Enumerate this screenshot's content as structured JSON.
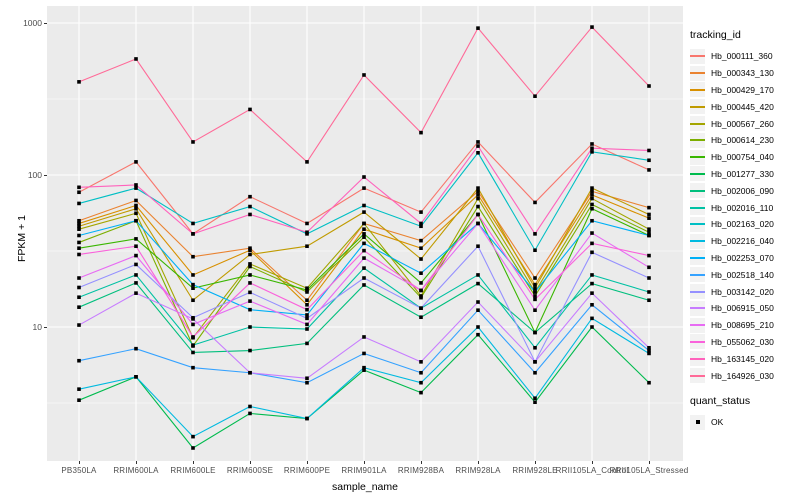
{
  "chart_data": {
    "type": "line",
    "title": "",
    "xlabel": "sample_name",
    "ylabel": "FPKM + 1",
    "yscale": "log10",
    "ylim": [
      1.3,
      1300
    ],
    "yticks": [
      10,
      100,
      1000
    ],
    "ytick_labels": [
      "10",
      "100",
      "1000"
    ],
    "yminor": [
      3.162,
      31.62,
      316.2
    ],
    "grid": true,
    "legend_position": "right",
    "legend_title": "tracking_id",
    "legend2_title": "quant_status",
    "legend2_items": [
      {
        "label": "OK",
        "point_color": "#000000"
      }
    ],
    "panel_bg": "#EBEBEB",
    "grid_color": "#FFFFFF",
    "point_color": "#000000",
    "axis_text_color": "#4D4D4D",
    "categories": [
      "PB350LA",
      "RRIM600LA",
      "RRIM600LE",
      "RRIM600SE",
      "RRIM600PE",
      "RRIM901LA",
      "RRIM928BA",
      "RRIM928LA",
      "RRIM928LE",
      "RRII105LA_Control",
      "RRII105LA_Stressed"
    ],
    "series": [
      {
        "name": "Hb_000111_360",
        "color": "#F8766D",
        "values": [
          77,
          122,
          41,
          72,
          48,
          82,
          57,
          165,
          66,
          160,
          108
        ]
      },
      {
        "name": "Hb_000343_130",
        "color": "#EA8331",
        "values": [
          50,
          68,
          29,
          33,
          15,
          48,
          37,
          78,
          21,
          78,
          61
        ]
      },
      {
        "name": "Hb_000429_170",
        "color": "#D89000",
        "values": [
          48,
          63,
          22,
          32,
          14,
          44,
          33,
          74,
          19,
          74,
          52
        ]
      },
      {
        "name": "Hb_000445_420",
        "color": "#C09B00",
        "values": [
          46,
          60,
          15,
          30,
          34,
          57,
          28,
          82,
          18,
          82,
          55
        ]
      },
      {
        "name": "Hb_000567_260",
        "color": "#A3A500",
        "values": [
          44,
          56,
          8.5,
          26,
          18,
          48,
          16,
          70,
          17,
          70,
          44
        ]
      },
      {
        "name": "Hb_000614_230",
        "color": "#7CAE00",
        "values": [
          36,
          50,
          7.5,
          25,
          17,
          39,
          15.6,
          62,
          16,
          64,
          42
        ]
      },
      {
        "name": "Hb_000754_040",
        "color": "#39B600",
        "values": [
          33,
          38,
          18,
          22,
          17.5,
          41,
          19.5,
          55,
          9.2,
          60,
          40
        ]
      },
      {
        "name": "Hb_001277_330",
        "color": "#00BB4E",
        "values": [
          3.3,
          4.7,
          1.6,
          2.7,
          2.5,
          5.2,
          3.7,
          8.9,
          3.2,
          10,
          4.3
        ]
      },
      {
        "name": "Hb_002006_090",
        "color": "#00BF7D",
        "values": [
          13.5,
          19.5,
          6.8,
          7,
          7.8,
          18.9,
          11.6,
          19.3,
          9.2,
          19.3,
          15
        ]
      },
      {
        "name": "Hb_002016_110",
        "color": "#00C1A3",
        "values": [
          15.7,
          22,
          7.6,
          10,
          9.7,
          24.4,
          13.3,
          22,
          7.3,
          22,
          17
        ]
      },
      {
        "name": "Hb_002163_020",
        "color": "#00BFC4",
        "values": [
          65,
          82,
          48,
          62,
          41,
          63,
          46,
          140,
          32,
          142,
          125
        ]
      },
      {
        "name": "Hb_002216_040",
        "color": "#00BAE0",
        "values": [
          3.9,
          4.7,
          1.9,
          3,
          2.5,
          5.4,
          4.3,
          10,
          3.4,
          11.4,
          6.7
        ]
      },
      {
        "name": "Hb_002253_070",
        "color": "#00B0F6",
        "values": [
          40,
          50,
          19,
          13,
          12,
          35.5,
          22.6,
          48,
          17,
          50,
          40
        ]
      },
      {
        "name": "Hb_002518_140",
        "color": "#35A2FF",
        "values": [
          6,
          7.2,
          5.4,
          5,
          4.3,
          6.7,
          5,
          12.9,
          5,
          14,
          7
        ]
      },
      {
        "name": "Hb_003142_020",
        "color": "#9590FF",
        "values": [
          18.2,
          25.8,
          11.5,
          16.9,
          11.4,
          21,
          13.3,
          34,
          5.9,
          31,
          21
        ]
      },
      {
        "name": "Hb_006915_050",
        "color": "#C77CFF",
        "values": [
          10.3,
          16.7,
          11.3,
          5,
          4.6,
          8.6,
          5.9,
          14.6,
          5.9,
          16.7,
          7.3
        ]
      },
      {
        "name": "Hb_008695_210",
        "color": "#E76BF3",
        "values": [
          21,
          29.5,
          10.4,
          14.8,
          10.4,
          28.4,
          17.4,
          48,
          12.9,
          41.5,
          24.7
        ]
      },
      {
        "name": "Hb_055062_030",
        "color": "#FA62DB",
        "values": [
          30,
          34,
          8.6,
          19.5,
          13,
          31.8,
          17.4,
          55,
          15.2,
          35.5,
          29.5
        ]
      },
      {
        "name": "Hb_163145_020",
        "color": "#FF62BC",
        "values": [
          83,
          86,
          41,
          55,
          42,
          97,
          48,
          155,
          41,
          150,
          145
        ]
      },
      {
        "name": "Hb_164926_030",
        "color": "#FF6A98",
        "values": [
          410,
          580,
          165,
          270,
          122,
          455,
          190,
          925,
          330,
          940,
          385
        ]
      }
    ]
  }
}
